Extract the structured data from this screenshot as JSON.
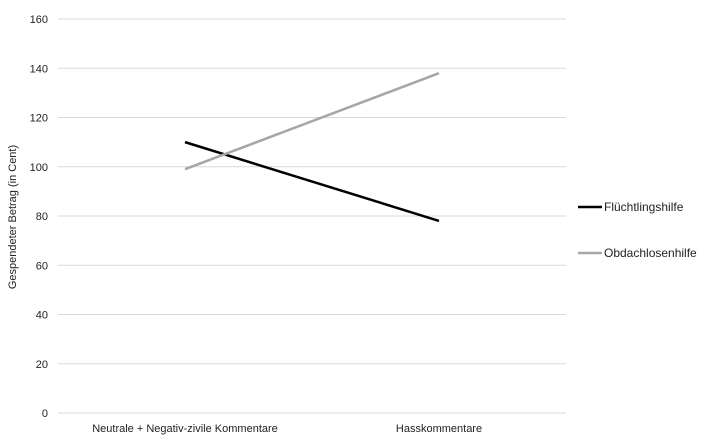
{
  "chart_data": {
    "type": "line",
    "title": "",
    "xlabel": "",
    "ylabel": "Gespendeter Betrag (in Cent)",
    "categories": [
      "Neutrale + Negativ-zivile Kommentare",
      "Hasskommentare"
    ],
    "ylim": [
      0,
      160
    ],
    "yticks": [
      0,
      20,
      40,
      60,
      80,
      100,
      120,
      140,
      160
    ],
    "grid": true,
    "legend_position": "right",
    "series": [
      {
        "name": "Flüchtlingshilfe",
        "values": [
          110,
          78
        ],
        "color": "#000000"
      },
      {
        "name": "Obdachlosenhilfe",
        "values": [
          99,
          138
        ],
        "color": "#a6a6a6"
      }
    ]
  }
}
